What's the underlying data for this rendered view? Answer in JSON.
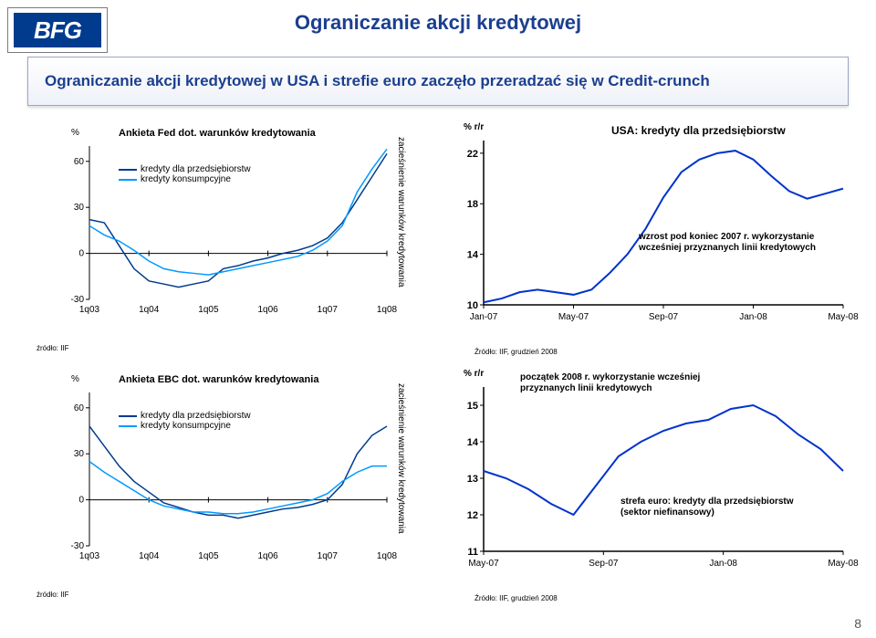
{
  "logo_text": "BFG",
  "page_title": "Ograniczanie akcji kredytowej",
  "subtitle": "Ograniczanie akcji kredytowej w USA i strefie euro zaczęło przeradzać się w Credit-crunch",
  "page_number": "8",
  "fed_chart": {
    "type": "line",
    "title": "Ankieta Fed dot. warunków kredytowania",
    "y_unit": "%",
    "vert_label": "zacieśnienie warunków kredytowania",
    "x_labels": [
      "1q03",
      "1q04",
      "1q05",
      "1q06",
      "1q07",
      "1q08"
    ],
    "y_ticks": [
      -30,
      0,
      30,
      60
    ],
    "ylim": [
      -30,
      70
    ],
    "series": [
      {
        "name": "kredyty dla przedsiębiorstw",
        "color": "#003b8e",
        "data": [
          22,
          20,
          5,
          -10,
          -18,
          -20,
          -22,
          -20,
          -18,
          -10,
          -8,
          -5,
          -3,
          0,
          2,
          5,
          10,
          20,
          35,
          50,
          65
        ]
      },
      {
        "name": "kredyty konsumpcyjne",
        "color": "#0099ff",
        "data": [
          18,
          12,
          8,
          2,
          -5,
          -10,
          -12,
          -13,
          -14,
          -12,
          -10,
          -8,
          -6,
          -4,
          -2,
          2,
          8,
          18,
          40,
          55,
          68
        ]
      }
    ],
    "source": "źródło: IIF",
    "bg": "#ffffff",
    "axis_color": "#000000",
    "line_width": 1.5,
    "title_fontsize": 11,
    "label_fontsize": 10
  },
  "ecb_chart": {
    "type": "line",
    "title": "Ankieta EBC dot. warunków kredytowania",
    "y_unit": "%",
    "vert_label": "zacieśnienie warunków kredytowania",
    "x_labels": [
      "1q03",
      "1q04",
      "1q05",
      "1q06",
      "1q07",
      "1q08"
    ],
    "y_ticks": [
      -30,
      0,
      30,
      60
    ],
    "ylim": [
      -30,
      70
    ],
    "series": [
      {
        "name": "kredyty dla przedsiębiorstw",
        "color": "#003b8e",
        "data": [
          48,
          35,
          22,
          12,
          5,
          -2,
          -5,
          -8,
          -10,
          -10,
          -12,
          -10,
          -8,
          -6,
          -5,
          -3,
          0,
          10,
          30,
          42,
          48
        ]
      },
      {
        "name": "kredyty konsumpcyjne",
        "color": "#0099ff",
        "data": [
          25,
          18,
          12,
          6,
          0,
          -4,
          -6,
          -8,
          -8,
          -9,
          -9,
          -8,
          -6,
          -4,
          -2,
          0,
          4,
          12,
          18,
          22,
          22
        ]
      }
    ],
    "source": "źródło: IIF",
    "bg": "#ffffff",
    "axis_color": "#000000",
    "line_width": 1.5,
    "title_fontsize": 11,
    "label_fontsize": 10
  },
  "usa_chart": {
    "type": "line",
    "title": "USA: kredyty dla przedsiębiorstw",
    "y_unit": "% r/r",
    "x_labels": [
      "Jan-07",
      "May-07",
      "Sep-07",
      "Jan-08",
      "May-08"
    ],
    "y_ticks": [
      10,
      14,
      18,
      22
    ],
    "ylim": [
      10,
      23
    ],
    "color": "#0033cc",
    "data": [
      10.2,
      10.5,
      11,
      11.2,
      11.0,
      10.8,
      11.2,
      12.5,
      14,
      16,
      18.5,
      20.5,
      21.5,
      22.0,
      22.2,
      21.5,
      20.2,
      19.0,
      18.4,
      18.8,
      19.2
    ],
    "annot": "wzrost pod koniec 2007 r. wykorzystanie wcześniej przyznanych linii kredytowych",
    "source": "Źródło: IIF, grudzień 2008",
    "bg": "#ffffff",
    "axis_color": "#000000",
    "line_width": 2,
    "title_fontsize": 12,
    "label_fontsize": 10
  },
  "euro_chart": {
    "type": "line",
    "title": "strefa euro: kredyty dla przedsiębiorstw (sektor niefinansowy)",
    "y_unit": "% r/r",
    "x_labels": [
      "May-07",
      "Sep-07",
      "Jan-08",
      "May-08"
    ],
    "y_ticks": [
      11,
      12,
      13,
      14,
      15
    ],
    "ylim": [
      11,
      15.5
    ],
    "color": "#0033cc",
    "data": [
      13.2,
      13.0,
      12.7,
      12.3,
      12.0,
      12.8,
      13.6,
      14.0,
      14.3,
      14.5,
      14.6,
      14.9,
      15.0,
      14.7,
      14.2,
      13.8,
      13.2
    ],
    "annot": "początek 2008 r. wykorzystanie wcześniej przyznanych linii kredytowych",
    "source": "Źródło: IIF, grudzień 2008",
    "bg": "#ffffff",
    "axis_color": "#000000",
    "line_width": 2,
    "title_fontsize": 12,
    "label_fontsize": 10
  }
}
